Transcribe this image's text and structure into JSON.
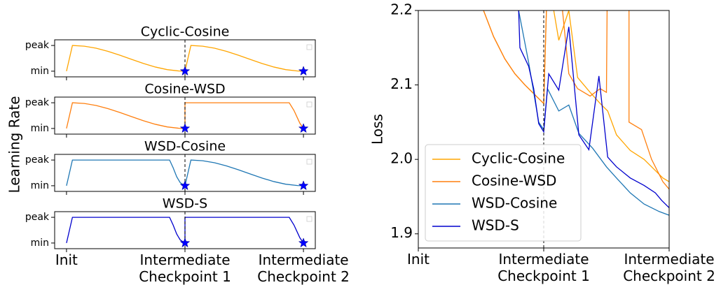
{
  "shared_ylabel": "Learning Rate",
  "chart_data": [
    {
      "type": "line",
      "title": "Cyclic-Cosine",
      "xlim": [
        -0.1,
        2.1
      ],
      "ylim": [
        -0.22,
        1.22
      ],
      "xticks": [
        0,
        1,
        2
      ],
      "show_xtick_labels": false,
      "yticks": [
        {
          "value": 0,
          "label": "min"
        },
        {
          "value": 1,
          "label": "peak"
        }
      ],
      "vline": 1,
      "series": [
        {
          "color": "#ffa500",
          "x": [
            0,
            0.05,
            0.15,
            0.25,
            0.35,
            0.45,
            0.55,
            0.65,
            0.75,
            0.85,
            0.95,
            1.0,
            1.0,
            1.05,
            1.15,
            1.25,
            1.35,
            1.45,
            1.55,
            1.65,
            1.75,
            1.85,
            1.95,
            2.0
          ],
          "values": [
            0,
            1,
            0.973,
            0.895,
            0.773,
            0.622,
            0.459,
            0.3,
            0.162,
            0.06,
            0.007,
            0,
            0,
            1,
            0.973,
            0.895,
            0.773,
            0.622,
            0.459,
            0.3,
            0.162,
            0.06,
            0.007,
            0
          ]
        }
      ],
      "markers": {
        "color": "#0000ff",
        "x": [
          1,
          2
        ],
        "values": [
          0,
          0
        ]
      }
    },
    {
      "type": "line",
      "title": "Cosine-WSD",
      "xlim": [
        -0.1,
        2.1
      ],
      "ylim": [
        -0.22,
        1.22
      ],
      "xticks": [
        0,
        1,
        2
      ],
      "show_xtick_labels": false,
      "yticks": [
        {
          "value": 0,
          "label": "min"
        },
        {
          "value": 1,
          "label": "peak"
        }
      ],
      "vline": 1,
      "series": [
        {
          "color": "#ff7f0e",
          "x": [
            0,
            0.05,
            0.15,
            0.25,
            0.35,
            0.45,
            0.55,
            0.65,
            0.75,
            0.85,
            0.95,
            1.0,
            1.0,
            1.88,
            1.92,
            1.95,
            1.97,
            2.0
          ],
          "values": [
            0,
            1,
            0.973,
            0.895,
            0.773,
            0.622,
            0.459,
            0.3,
            0.162,
            0.06,
            0.007,
            0,
            1,
            1,
            0.7,
            0.4,
            0.2,
            0
          ]
        }
      ],
      "markers": {
        "color": "#0000ff",
        "x": [
          1,
          2
        ],
        "values": [
          0,
          0
        ]
      }
    },
    {
      "type": "line",
      "title": "WSD-Cosine",
      "xlim": [
        -0.1,
        2.1
      ],
      "ylim": [
        -0.22,
        1.22
      ],
      "xticks": [
        0,
        1,
        2
      ],
      "show_xtick_labels": false,
      "yticks": [
        {
          "value": 0,
          "label": "min"
        },
        {
          "value": 1,
          "label": "peak"
        }
      ],
      "vline": 1,
      "series": [
        {
          "color": "#1f77b4",
          "x": [
            0,
            0.05,
            0.87,
            0.9,
            0.93,
            0.96,
            1.0,
            1.0,
            1.05,
            1.15,
            1.25,
            1.35,
            1.45,
            1.55,
            1.65,
            1.75,
            1.85,
            1.95,
            2.0
          ],
          "values": [
            0,
            1,
            1,
            0.7,
            0.35,
            0.12,
            0,
            0,
            1,
            0.973,
            0.895,
            0.773,
            0.622,
            0.459,
            0.3,
            0.162,
            0.06,
            0.007,
            0
          ]
        }
      ],
      "markers": {
        "color": "#0000ff",
        "x": [
          1,
          2
        ],
        "values": [
          0,
          0
        ]
      }
    },
    {
      "type": "line",
      "title": "WSD-S",
      "xlim": [
        -0.1,
        2.1
      ],
      "ylim": [
        -0.22,
        1.22
      ],
      "xticks": [
        {
          "value": 0,
          "label": "Init"
        },
        {
          "value": 1,
          "label": "Intermediate\nCheckpoint 1"
        },
        {
          "value": 2,
          "label": "Intermediate\nCheckpoint 2"
        }
      ],
      "show_xtick_labels": true,
      "yticks": [
        {
          "value": 0,
          "label": "min"
        },
        {
          "value": 1,
          "label": "peak"
        }
      ],
      "vline": 1,
      "series": [
        {
          "color": "#0000cd",
          "x": [
            0,
            0.05,
            0.87,
            0.9,
            0.93,
            0.96,
            1.0,
            1.0,
            1.88,
            1.92,
            1.95,
            1.97,
            2.0
          ],
          "values": [
            0,
            1,
            1,
            0.7,
            0.35,
            0.12,
            0,
            1,
            1,
            0.7,
            0.4,
            0.2,
            0
          ]
        }
      ],
      "markers": {
        "color": "#0000ff",
        "x": [
          1,
          2
        ],
        "values": [
          0,
          0
        ]
      }
    },
    {
      "type": "line",
      "ylabel": "Loss",
      "xlim": [
        0,
        2
      ],
      "ylim": [
        1.881,
        2.2
      ],
      "xticks": [
        {
          "value": 0,
          "label": "Init"
        },
        {
          "value": 1,
          "label": "Intermediate\nCheckpoint 1"
        },
        {
          "value": 2,
          "label": "Intermediate\nCheckpoint 2"
        }
      ],
      "show_xtick_labels": true,
      "yticks": [
        1.9,
        {
          "value": 2,
          "label": "2.0"
        },
        2.1,
        2.2
      ],
      "vline": 1,
      "legend": "lower left",
      "series": [
        {
          "name": "Cyclic-Cosine",
          "color": "#ffa500",
          "x": [
            0.45,
            0.52,
            0.6,
            0.69,
            0.77,
            0.85,
            0.94,
            1.0,
            1.03,
            1.06,
            1.12,
            1.2,
            1.27,
            1.37,
            1.45,
            1.51,
            1.58,
            1.69,
            1.8,
            1.89,
            1.95,
            2.0
          ],
          "values": [
            2.3,
            2.2,
            2.165,
            2.135,
            2.115,
            2.1,
            2.085,
            2.075,
            2.25,
            2.22,
            2.16,
            2.2,
            2.11,
            2.09,
            2.075,
            2.065,
            2.033,
            2.012,
            2.0,
            1.985,
            1.975,
            1.97
          ]
        },
        {
          "name": "Cosine-WSD",
          "color": "#ff7f0e",
          "x": [
            0.45,
            0.52,
            0.6,
            0.69,
            0.77,
            0.85,
            0.94,
            1.0,
            1.03,
            1.12,
            1.2,
            1.27,
            1.37,
            1.45,
            1.5,
            1.51,
            1.68,
            1.68,
            1.78,
            1.86,
            1.95,
            2.0
          ],
          "values": [
            2.3,
            2.2,
            2.165,
            2.135,
            2.115,
            2.1,
            2.085,
            2.075,
            2.25,
            2.25,
            2.115,
            2.095,
            2.085,
            2.095,
            2.09,
            2.3,
            2.3,
            2.05,
            2.04,
            2.0,
            1.97,
            1.96
          ]
        },
        {
          "name": "WSD-Cosine",
          "color": "#1f77b4",
          "x": [
            0.79,
            0.8,
            0.88,
            0.96,
            1.0,
            1.03,
            1.12,
            1.2,
            1.28,
            1.39,
            1.5,
            1.58,
            1.69,
            1.8,
            1.92,
            2.0
          ],
          "values": [
            2.3,
            2.2,
            2.13,
            2.05,
            2.04,
            2.095,
            2.065,
            2.073,
            2.035,
            2.015,
            1.99,
            1.975,
            1.955,
            1.94,
            1.93,
            1.925
          ]
        },
        {
          "name": "WSD-S",
          "color": "#0000cd",
          "x": [
            0.79,
            0.8,
            0.81,
            0.88,
            0.92,
            0.96,
            1.0,
            1.04,
            1.12,
            1.2,
            1.28,
            1.36,
            1.44,
            1.51,
            1.58,
            1.69,
            1.8,
            1.89,
            1.94,
            2.0
          ],
          "values": [
            2.3,
            2.2,
            2.15,
            2.125,
            2.095,
            2.048,
            2.037,
            2.115,
            2.093,
            2.178,
            2.033,
            2.013,
            2.112,
            2.003,
            1.99,
            1.975,
            1.965,
            1.955,
            1.945,
            1.935
          ]
        }
      ]
    }
  ]
}
